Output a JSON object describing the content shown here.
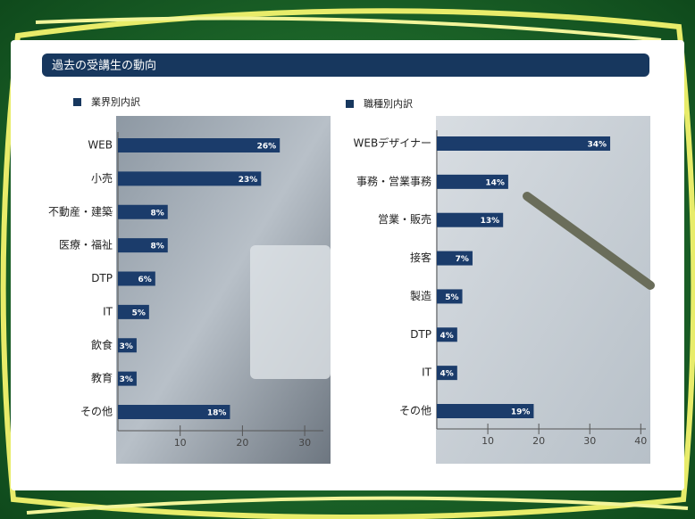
{
  "header": {
    "title": "過去の受講生の動向"
  },
  "chart_data": [
    {
      "type": "hbar",
      "title": "業界別内訳",
      "categories": [
        "WEB",
        "小売",
        "不動産・建築",
        "医療・福祉",
        "DTP",
        "IT",
        "飲食",
        "教育",
        "その他"
      ],
      "values": [
        26,
        23,
        8,
        8,
        6,
        5,
        3,
        3,
        18
      ],
      "value_labels": [
        "26%",
        "23%",
        "8%",
        "8%",
        "6%",
        "5%",
        "3%",
        "3%",
        "18%"
      ],
      "color": "#1b3c6b",
      "xlim": [
        0,
        33
      ],
      "xticks": [
        10,
        20,
        30
      ]
    },
    {
      "type": "hbar",
      "title": "職種別内訳",
      "categories": [
        "WEBデザイナー",
        "事務・営業事務",
        "営業・販売",
        "接客",
        "製造",
        "DTP",
        "IT",
        "その他"
      ],
      "values": [
        34,
        14,
        13,
        7,
        5,
        4,
        4,
        19
      ],
      "value_labels": [
        "34%",
        "14%",
        "13%",
        "7%",
        "5%",
        "4%",
        "4%",
        "19%"
      ],
      "color": "#1b3c6b",
      "xlim": [
        0,
        41
      ],
      "xticks": [
        10,
        20,
        30,
        40
      ]
    }
  ]
}
